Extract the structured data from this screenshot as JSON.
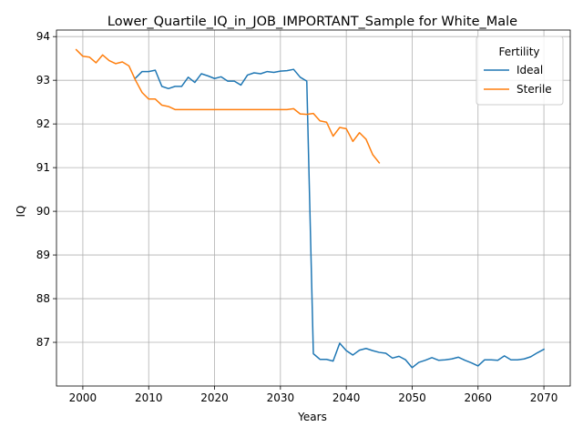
{
  "chart_data": {
    "type": "line",
    "title": "Lower_Quartile_IQ_in_JOB_IMPORTANT_Sample for White_Male",
    "xlabel": "Years",
    "ylabel": "IQ",
    "xlim": [
      1996,
      2074
    ],
    "ylim": [
      86.0,
      94.15
    ],
    "xticks": [
      2000,
      2010,
      2020,
      2030,
      2040,
      2050,
      2060,
      2070
    ],
    "yticks": [
      87,
      88,
      89,
      90,
      91,
      92,
      93,
      94
    ],
    "grid": true,
    "legend": {
      "title": "Fertility",
      "position": "top-right"
    },
    "series": [
      {
        "name": "Ideal",
        "color": "#1f77b4",
        "x": [
          2008,
          2009,
          2010,
          2011,
          2012,
          2013,
          2014,
          2015,
          2016,
          2017,
          2018,
          2019,
          2020,
          2021,
          2022,
          2023,
          2024,
          2025,
          2026,
          2027,
          2028,
          2029,
          2030,
          2031,
          2032,
          2033,
          2034,
          2035,
          2036,
          2037,
          2038,
          2039,
          2040,
          2041,
          2042,
          2043,
          2044,
          2045,
          2046,
          2047,
          2048,
          2049,
          2050,
          2051,
          2052,
          2053,
          2054,
          2055,
          2056,
          2057,
          2058,
          2059,
          2060,
          2061,
          2062,
          2063,
          2064,
          2065,
          2066,
          2067,
          2068,
          2069,
          2070
        ],
        "y": [
          93.05,
          93.2,
          93.2,
          93.23,
          92.86,
          92.81,
          92.86,
          92.86,
          93.07,
          92.95,
          93.15,
          93.1,
          93.04,
          93.08,
          92.98,
          92.98,
          92.89,
          93.12,
          93.17,
          93.15,
          93.2,
          93.18,
          93.21,
          93.22,
          93.25,
          93.07,
          92.98,
          86.74,
          86.61,
          86.61,
          86.57,
          86.98,
          86.81,
          86.71,
          86.82,
          86.86,
          86.81,
          86.77,
          86.75,
          86.64,
          86.68,
          86.6,
          86.42,
          86.54,
          86.59,
          86.65,
          86.59,
          86.6,
          86.62,
          86.66,
          86.59,
          86.53,
          86.46,
          86.6,
          86.6,
          86.59,
          86.69,
          86.6,
          86.6,
          86.62,
          86.67,
          86.76,
          86.84
        ]
      },
      {
        "name": "Sterile",
        "color": "#ff7f0e",
        "x": [
          1999,
          2000,
          2001,
          2002,
          2003,
          2004,
          2005,
          2006,
          2007,
          2008,
          2009,
          2010,
          2011,
          2012,
          2013,
          2014,
          2015,
          2016,
          2017,
          2018,
          2019,
          2020,
          2021,
          2022,
          2023,
          2024,
          2025,
          2026,
          2027,
          2028,
          2029,
          2030,
          2031,
          2032,
          2033,
          2034,
          2035,
          2036,
          2037,
          2038,
          2039,
          2040,
          2041,
          2042,
          2043,
          2044,
          2045
        ],
        "y": [
          93.7,
          93.55,
          93.53,
          93.4,
          93.58,
          93.45,
          93.38,
          93.42,
          93.33,
          93.0,
          92.72,
          92.57,
          92.57,
          92.43,
          92.4,
          92.33,
          92.33,
          92.33,
          92.33,
          92.33,
          92.33,
          92.33,
          92.33,
          92.33,
          92.33,
          92.33,
          92.33,
          92.33,
          92.33,
          92.33,
          92.33,
          92.33,
          92.33,
          92.35,
          92.23,
          92.22,
          92.24,
          92.07,
          92.04,
          91.72,
          91.92,
          91.89,
          91.6,
          91.8,
          91.65,
          91.3,
          91.11
        ]
      }
    ]
  }
}
